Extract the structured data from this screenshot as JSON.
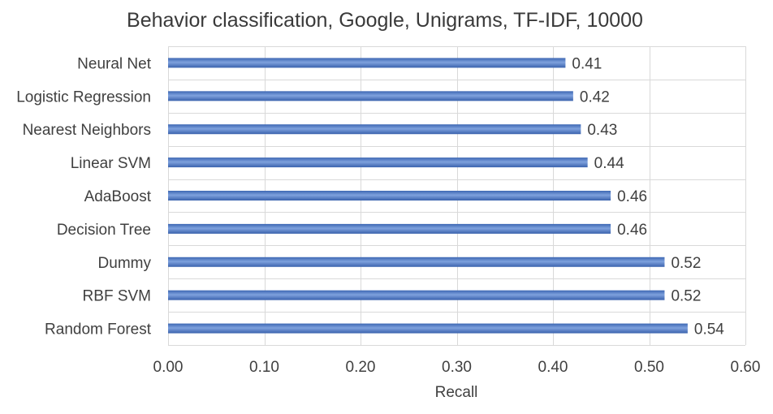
{
  "chart_data": {
    "type": "bar",
    "orientation": "horizontal",
    "title": "Behavior classification, Google, Unigrams, TF-IDF, 10000",
    "xlabel": "Recall",
    "ylabel": "",
    "xlim": [
      0,
      0.6
    ],
    "categories": [
      "Neural Net",
      "Logistic Regression",
      "Nearest Neighbors",
      "Linear SVM",
      "AdaBoost",
      "Decision Tree",
      "Dummy",
      "RBF SVM",
      "Random Forest"
    ],
    "values": [
      0.413,
      0.421,
      0.429,
      0.436,
      0.46,
      0.46,
      0.516,
      0.516,
      0.54
    ],
    "data_labels": [
      "0.41",
      "0.42",
      "0.43",
      "0.44",
      "0.46",
      "0.46",
      "0.52",
      "0.52",
      "0.54"
    ],
    "x_ticks": [
      "0.00",
      "0.10",
      "0.20",
      "0.30",
      "0.40",
      "0.50",
      "0.60"
    ],
    "x_tick_values": [
      0,
      0.1,
      0.2,
      0.3,
      0.4,
      0.5,
      0.6
    ],
    "grid": true,
    "legend": "none",
    "colors": {
      "bar": "#4472c4",
      "bar_highlight": "#7ea1dd",
      "grid": "#d9d9d9",
      "text": "#404040"
    }
  }
}
